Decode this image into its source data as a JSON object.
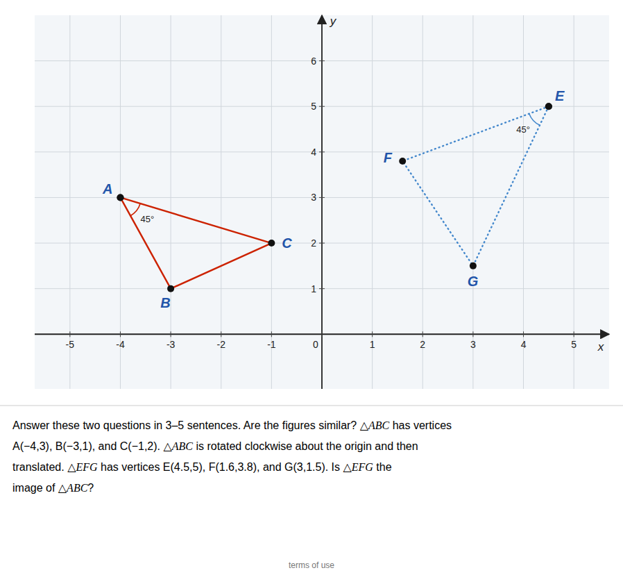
{
  "chart_data": {
    "type": "line",
    "x_label": "x",
    "y_label": "y",
    "xlim": [
      -5.7,
      5.7
    ],
    "ylim": [
      -1.2,
      7.0
    ],
    "xticks": [
      -5,
      -4,
      -3,
      -2,
      -1,
      0,
      1,
      2,
      3,
      4,
      5
    ],
    "yticks": [
      1,
      2,
      3,
      4,
      5,
      6
    ],
    "grid": true,
    "series": [
      {
        "x": [
          -4,
          -3,
          -1,
          -4
        ],
        "values": [
          3,
          1,
          2,
          3
        ],
        "color": "#cc2200",
        "line_style": "solid",
        "marker": "circle"
      },
      {
        "x": [
          4.5,
          1.6,
          3,
          4.5
        ],
        "values": [
          5,
          3.8,
          1.5,
          5
        ],
        "color": "#4488cc",
        "line_style": "dotted",
        "marker": "circle"
      }
    ],
    "labels": [
      {
        "text": "A",
        "x": -4,
        "y": 3
      },
      {
        "text": "B",
        "x": -3,
        "y": 1
      },
      {
        "text": "C",
        "x": -1,
        "y": 2
      },
      {
        "text": "E",
        "x": 4.5,
        "y": 5
      },
      {
        "text": "F",
        "x": 1.6,
        "y": 3.8
      },
      {
        "text": "G",
        "x": 3,
        "y": 1.5
      }
    ],
    "angle_marks": [
      {
        "text": "45°",
        "x": -4,
        "y": 3
      },
      {
        "text": "45°",
        "x": 4.5,
        "y": 5
      }
    ],
    "note_lines": [
      [
        "Answer these two questions in 3–5 sentences. Are the figures similar? ",
        "△ABC",
        " has vertices"
      ],
      [
        "A(−4,3), B(−3,1), and C(−1,2). ",
        "△ABC",
        " is rotated clockwise about the origin and then"
      ],
      [
        "translated. ",
        "△EFG",
        " has vertices E(4.5,5), F(1.6,3.8), and G(3,1.5). Is ",
        "△EFG",
        " the"
      ],
      [
        "image of ",
        "△ABC",
        "?"
      ]
    ],
    "footer": "terms of use"
  }
}
